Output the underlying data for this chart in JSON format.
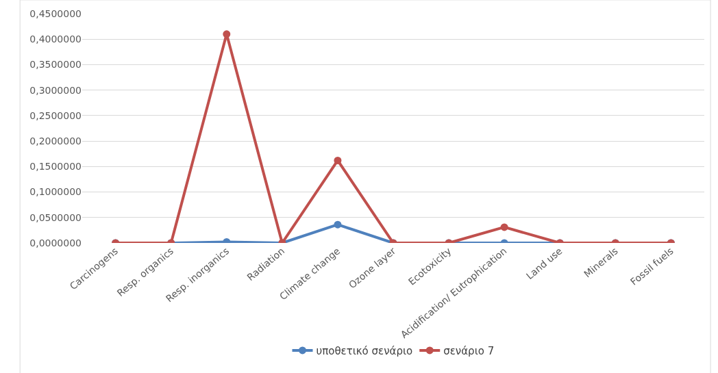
{
  "chart_data": {
    "type": "line",
    "categories": [
      "Carcinogens",
      "Resp. organics",
      "Resp. inorganics",
      "Radiation",
      "Climate change",
      "Ozone layer",
      "Ecotoxicity",
      "Acidification/ Eutrophication",
      "Land use",
      "Minerals",
      "Fossil fuels"
    ],
    "series": [
      {
        "name": "υποθετικό σενάριο",
        "color": "#4f81bd",
        "values": [
          0,
          0,
          0.002,
          0,
          0.036,
          0,
          0,
          0,
          0,
          0,
          0
        ]
      },
      {
        "name": "σενάριο 7",
        "color": "#c0504d",
        "values": [
          0,
          0,
          0.41,
          0,
          0.162,
          0,
          0,
          0.031,
          0,
          0,
          0
        ]
      }
    ],
    "ylim": [
      0,
      0.45
    ],
    "yticks": [
      {
        "value": 0,
        "label": "0,0000000"
      },
      {
        "value": 0.05,
        "label": "0,0500000"
      },
      {
        "value": 0.1,
        "label": "0,1000000"
      },
      {
        "value": 0.15,
        "label": "0,1500000"
      },
      {
        "value": 0.2,
        "label": "0,2000000"
      },
      {
        "value": 0.25,
        "label": "0,2500000"
      },
      {
        "value": 0.3,
        "label": "0,3000000"
      },
      {
        "value": 0.35,
        "label": "0,3500000"
      },
      {
        "value": 0.4,
        "label": "0,4000000"
      },
      {
        "value": 0.45,
        "label": "0,4500000"
      }
    ],
    "grid": "y",
    "legend": "bottom",
    "marker": "circle",
    "line_style": "solid"
  }
}
